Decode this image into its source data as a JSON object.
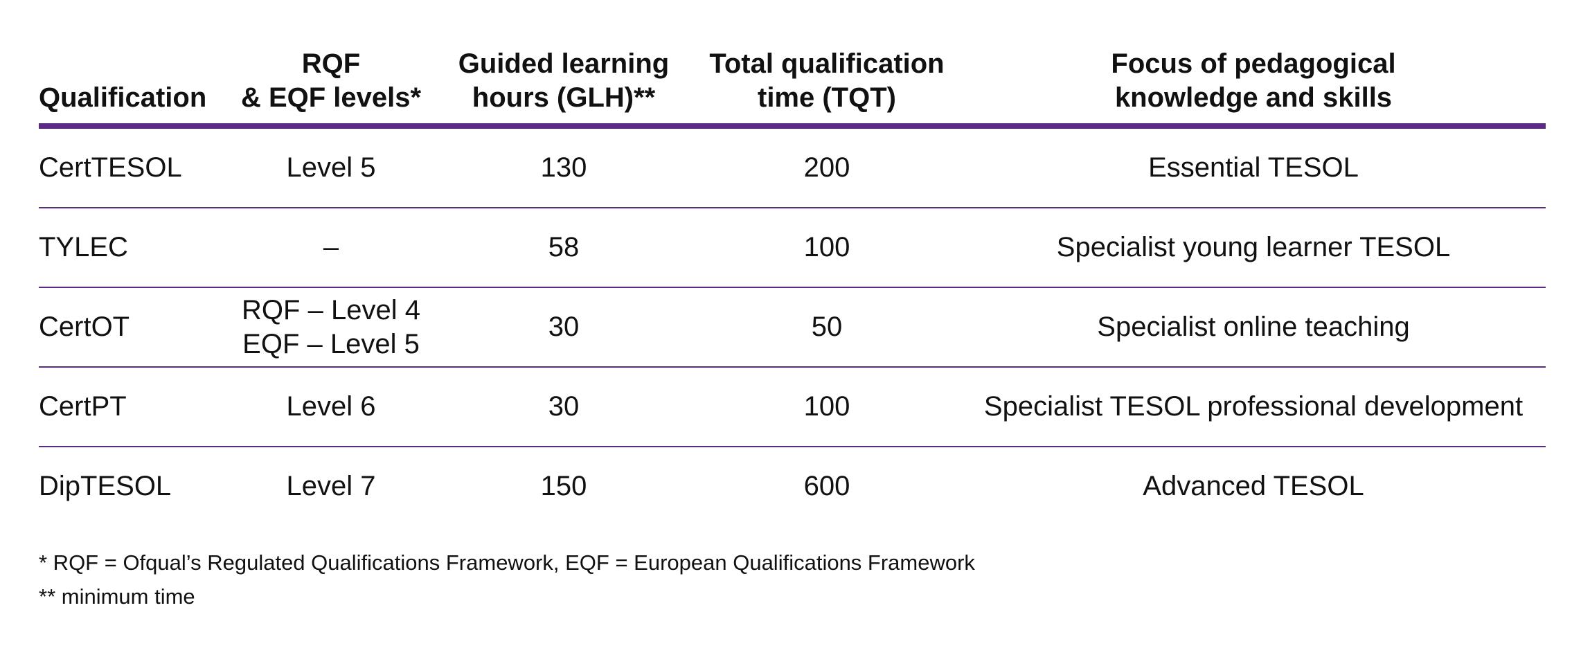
{
  "table": {
    "headers": [
      [
        "Qualification"
      ],
      [
        "RQF",
        "& EQF levels*"
      ],
      [
        "Guided learning",
        "hours (GLH)**"
      ],
      [
        "Total qualification",
        "time (TQT)"
      ],
      [
        "Focus of pedagogical",
        "knowledge and skills"
      ]
    ],
    "rows": [
      {
        "qualification": "CertTESOL",
        "levels": [
          "Level 5"
        ],
        "glh": "130",
        "tqt": "200",
        "focus": "Essential TESOL"
      },
      {
        "qualification": "TYLEC",
        "levels": [
          "–"
        ],
        "glh": "58",
        "tqt": "100",
        "focus": "Specialist young learner TESOL"
      },
      {
        "qualification": "CertOT",
        "levels": [
          "RQF – Level 4",
          "EQF – Level 5"
        ],
        "glh": "30",
        "tqt": "50",
        "focus": "Specialist online teaching"
      },
      {
        "qualification": "CertPT",
        "levels": [
          "Level 6"
        ],
        "glh": "30",
        "tqt": "100",
        "focus": "Specialist TESOL professional development"
      },
      {
        "qualification": "DipTESOL",
        "levels": [
          "Level 7"
        ],
        "glh": "150",
        "tqt": "600",
        "focus": "Advanced TESOL"
      }
    ]
  },
  "footnotes": [
    "* RQF = Ofqual’s Regulated Qualifications Framework, EQF = European Qualifications Framework",
    "** minimum time"
  ],
  "colors": {
    "rule": "#5b2a86",
    "text": "#111111"
  }
}
